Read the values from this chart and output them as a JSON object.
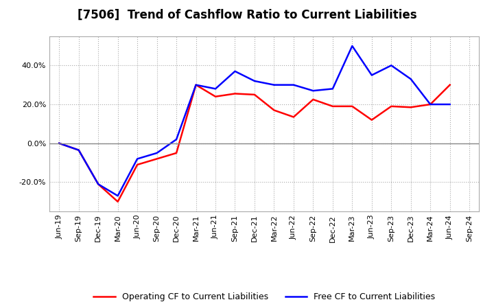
{
  "title": "[7506]  Trend of Cashflow Ratio to Current Liabilities",
  "x_labels": [
    "Jun-19",
    "Sep-19",
    "Dec-19",
    "Mar-20",
    "Jun-20",
    "Sep-20",
    "Dec-20",
    "Mar-21",
    "Jun-21",
    "Sep-21",
    "Dec-21",
    "Mar-22",
    "Jun-22",
    "Sep-22",
    "Dec-22",
    "Mar-23",
    "Jun-23",
    "Sep-23",
    "Dec-23",
    "Mar-24",
    "Jun-24",
    "Sep-24"
  ],
  "operating_cf": [
    0.0,
    -3.5,
    -21.0,
    -30.0,
    -11.0,
    -8.0,
    -5.0,
    30.0,
    24.0,
    25.5,
    25.0,
    17.0,
    13.5,
    22.5,
    19.0,
    19.0,
    12.0,
    19.0,
    18.5,
    20.0,
    30.0,
    null
  ],
  "free_cf": [
    0.0,
    -3.5,
    -21.0,
    -27.0,
    -8.0,
    -5.0,
    2.0,
    30.0,
    28.0,
    37.0,
    32.0,
    30.0,
    30.0,
    27.0,
    28.0,
    50.0,
    35.0,
    40.0,
    33.0,
    20.0,
    20.0,
    null
  ],
  "ylim": [
    -35,
    55
  ],
  "yticks": [
    -20.0,
    0.0,
    20.0,
    40.0
  ],
  "y0_color": "#888888",
  "grid_color": "#aaaaaa",
  "operating_color": "#ff0000",
  "free_color": "#0000ff",
  "bg_color": "#ffffff",
  "plot_bg_color": "#ffffff",
  "legend_operating": "Operating CF to Current Liabilities",
  "legend_free": "Free CF to Current Liabilities",
  "title_fontsize": 12,
  "tick_fontsize": 8,
  "legend_fontsize": 9
}
